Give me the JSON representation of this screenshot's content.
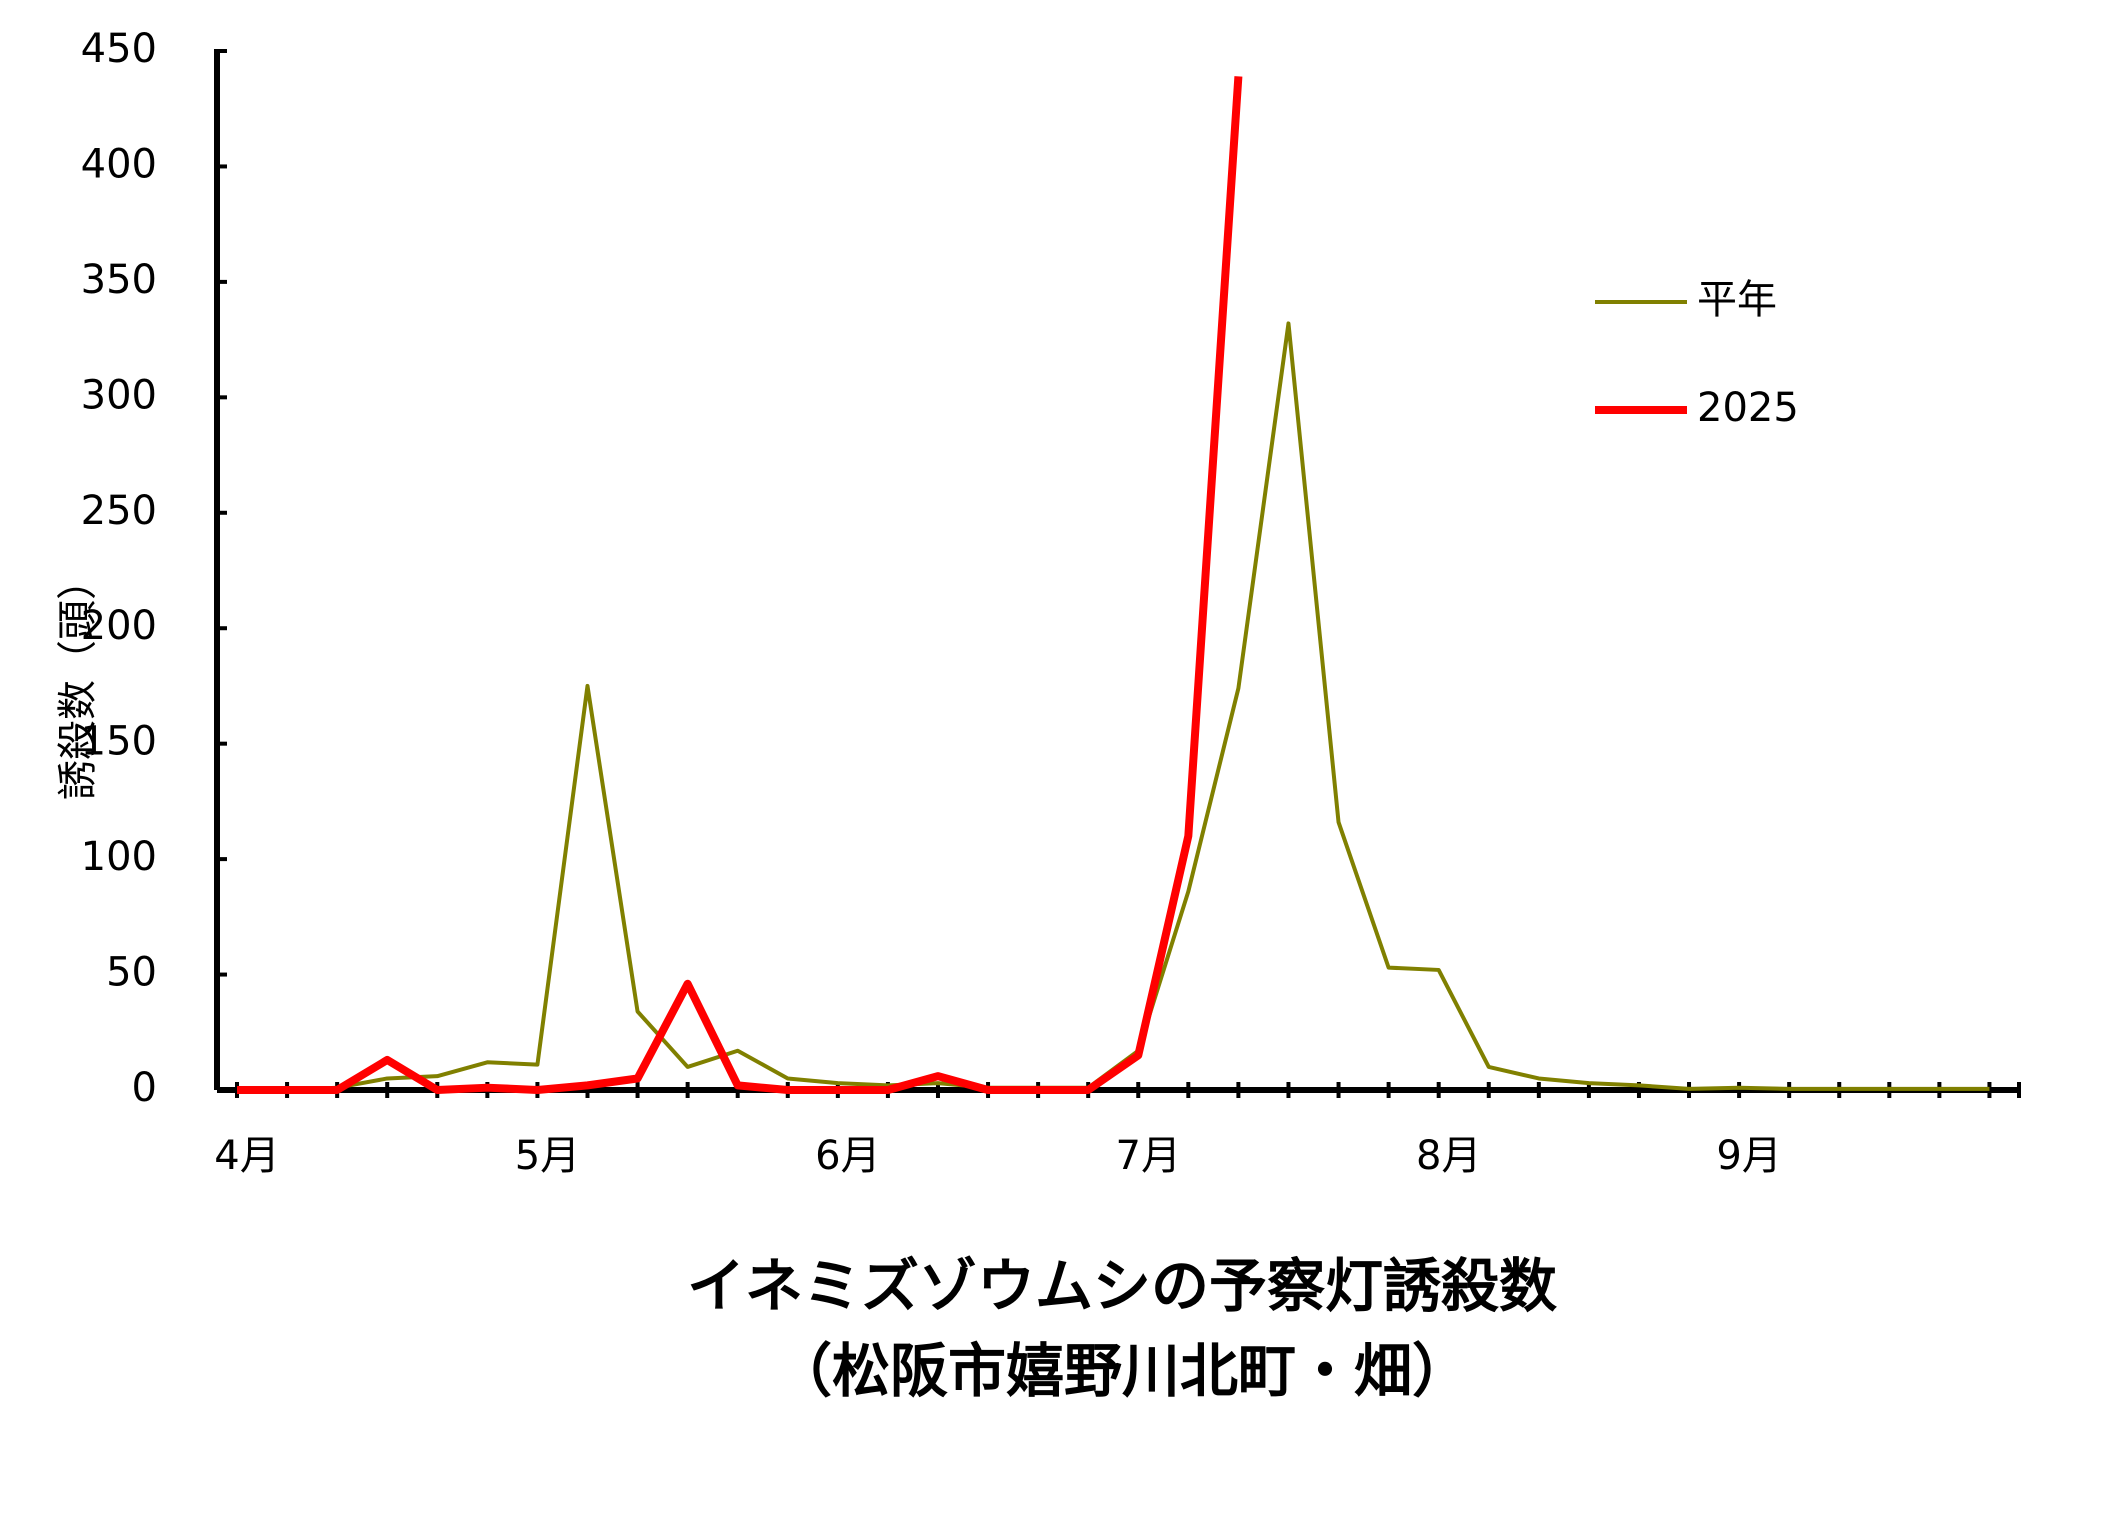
{
  "chart_data": {
    "type": "line",
    "title": "イネミズゾウムシの予察灯誘殺数",
    "subtitle": "（松阪市嬉野川北町・畑）",
    "y_label": "誘殺数（頭）",
    "categories": [
      "4月",
      null,
      null,
      null,
      null,
      null,
      "5月",
      null,
      null,
      null,
      null,
      null,
      "6月",
      null,
      null,
      null,
      null,
      null,
      "7月",
      null,
      null,
      null,
      null,
      null,
      "8月",
      null,
      null,
      null,
      null,
      null,
      "9月",
      null,
      null,
      null,
      null,
      null
    ],
    "series": [
      {
        "name": "平年",
        "color": "#808000",
        "width": 4,
        "values": [
          0,
          0,
          1,
          5,
          6,
          12,
          11,
          175,
          34,
          10,
          17,
          5,
          3,
          2,
          3,
          1,
          1,
          1,
          17,
          86,
          174,
          332,
          116,
          53,
          52,
          10,
          5,
          3,
          2,
          0.5,
          1,
          0.5,
          0.5,
          0.5,
          0.5,
          0.5
        ]
      },
      {
        "name": "2025",
        "color": "#ff0000",
        "width": 8,
        "values": [
          0,
          0,
          0,
          13,
          0,
          1,
          0,
          2,
          5,
          46,
          2,
          0,
          0,
          0,
          6,
          0,
          0,
          0,
          15,
          110,
          439,
          null,
          null,
          null,
          null,
          null,
          null,
          null,
          null,
          null,
          null,
          null,
          null,
          null,
          null,
          null
        ]
      }
    ],
    "ylim": [
      0,
      450
    ],
    "yticks": [
      0,
      50,
      100,
      150,
      200,
      250,
      300,
      350,
      400,
      450
    ],
    "legend": "upper right"
  }
}
